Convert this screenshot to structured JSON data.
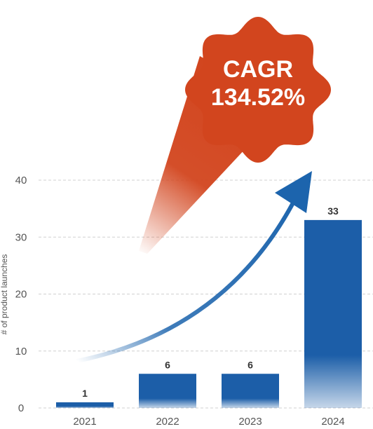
{
  "chart_data": {
    "type": "bar",
    "categories": [
      "2021",
      "2022",
      "2023",
      "2024"
    ],
    "values": [
      1,
      6,
      6,
      33
    ],
    "data_labels": [
      "1",
      "6",
      "6",
      "33"
    ],
    "ylabel": "# of product launches",
    "ylim": [
      0,
      40
    ],
    "yticks": [
      "0",
      "10",
      "20",
      "30",
      "40"
    ],
    "grid": true,
    "annotation": {
      "line1": "CAGR",
      "line2": "134.52%"
    },
    "colors": {
      "bar": "#1c5ea8",
      "accent": "#d2451e",
      "arrow": "#1c64ad"
    }
  }
}
